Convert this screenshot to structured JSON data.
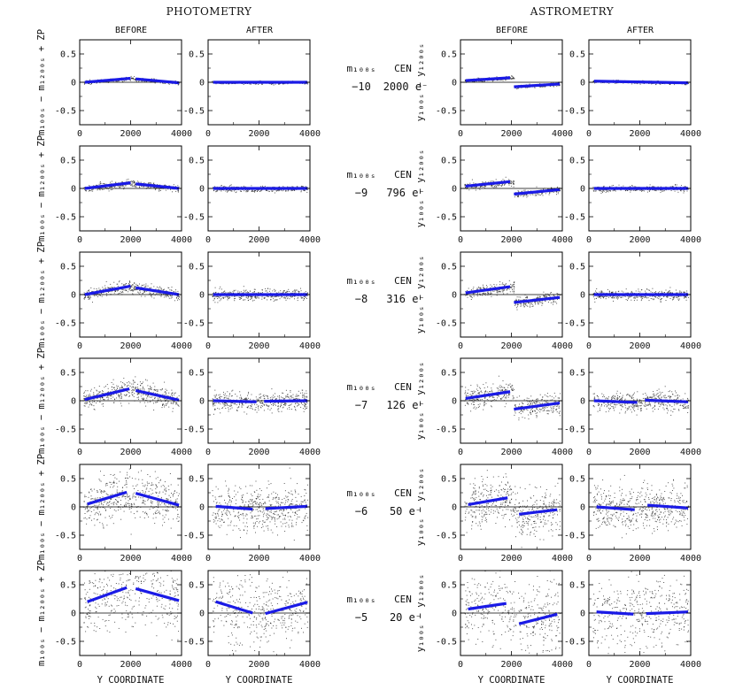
{
  "headers": {
    "left_title": "PHOTOMETRY",
    "right_title": "ASTROMETRY",
    "before": "BEFORE",
    "after": "AFTER"
  },
  "axes": {
    "x_label": "Y COORDINATE",
    "y_label_phot": "m₁₀₀ₛ − m₁₂₀₀ₛ + ZP",
    "y_label_astr": "y₁₀₀ₛ − y₁₂₀₀ₛ"
  },
  "middle_labels": [
    {
      "mag_label": "m₁₀₀ₛ",
      "cen_label": "CEN",
      "mag": "−10",
      "cen": "2000 e⁻"
    },
    {
      "mag_label": "m₁₀₀ₛ",
      "cen_label": "CEN",
      "mag": "−9",
      "cen": "796 e⁻"
    },
    {
      "mag_label": "m₁₀₀ₛ",
      "cen_label": "CEN",
      "mag": "−8",
      "cen": "316 e⁻"
    },
    {
      "mag_label": "m₁₀₀ₛ",
      "cen_label": "CEN",
      "mag": "−7",
      "cen": "126 e⁻"
    },
    {
      "mag_label": "m₁₀₀ₛ",
      "cen_label": "CEN",
      "mag": "−6",
      "cen": "50 e⁻"
    },
    {
      "mag_label": "m₁₀₀ₛ",
      "cen_label": "CEN",
      "mag": "−5",
      "cen": "20 e⁻"
    }
  ],
  "chart_data": {
    "type": "scatter",
    "x_range": [
      0,
      4000
    ],
    "y_range": [
      -0.75,
      0.75
    ],
    "x_ticks": [
      0,
      2000,
      4000
    ],
    "y_ticks": [
      0.5,
      0,
      -0.5
    ],
    "x_tick_labels": [
      "0",
      "2000",
      "4000"
    ],
    "y_tick_labels": [
      "0.5",
      "0",
      "-0.5"
    ],
    "panels": [
      {
        "row": 0,
        "col": "phot_before",
        "lines": [
          [
            200,
            0.0,
            2000,
            0.07
          ],
          [
            2200,
            0.06,
            3900,
            -0.01
          ]
        ],
        "scatter": 0.015,
        "density": 380
      },
      {
        "row": 0,
        "col": "phot_after",
        "lines": [
          [
            200,
            0.0,
            3900,
            0.0
          ]
        ],
        "scatter": 0.012,
        "density": 380
      },
      {
        "row": 0,
        "col": "astr_before",
        "lines": [
          [
            200,
            0.03,
            1950,
            0.08
          ],
          [
            2100,
            -0.08,
            3900,
            -0.03
          ]
        ],
        "scatter": 0.015,
        "density": 380
      },
      {
        "row": 0,
        "col": "astr_after",
        "lines": [
          [
            200,
            0.02,
            3900,
            -0.01
          ]
        ],
        "scatter": 0.012,
        "density": 380
      },
      {
        "row": 1,
        "col": "phot_before",
        "lines": [
          [
            200,
            0.0,
            2000,
            0.1
          ],
          [
            2200,
            0.08,
            3900,
            0.0
          ]
        ],
        "scatter": 0.03,
        "density": 380
      },
      {
        "row": 1,
        "col": "phot_after",
        "lines": [
          [
            200,
            0.0,
            3900,
            0.0
          ]
        ],
        "scatter": 0.025,
        "density": 380
      },
      {
        "row": 1,
        "col": "astr_before",
        "lines": [
          [
            200,
            0.04,
            1950,
            0.12
          ],
          [
            2100,
            -0.1,
            3900,
            -0.02
          ]
        ],
        "scatter": 0.03,
        "density": 380
      },
      {
        "row": 1,
        "col": "astr_after",
        "lines": [
          [
            200,
            0.0,
            3900,
            0.0
          ]
        ],
        "scatter": 0.025,
        "density": 380
      },
      {
        "row": 2,
        "col": "phot_before",
        "lines": [
          [
            200,
            0.0,
            2000,
            0.15
          ],
          [
            2200,
            0.12,
            3900,
            0.0
          ]
        ],
        "scatter": 0.05,
        "density": 420
      },
      {
        "row": 2,
        "col": "phot_after",
        "lines": [
          [
            200,
            0.0,
            3900,
            0.0
          ]
        ],
        "scatter": 0.045,
        "density": 420
      },
      {
        "row": 2,
        "col": "astr_before",
        "lines": [
          [
            200,
            0.03,
            1950,
            0.14
          ],
          [
            2100,
            -0.14,
            3900,
            -0.05
          ]
        ],
        "scatter": 0.05,
        "density": 420
      },
      {
        "row": 2,
        "col": "astr_after",
        "lines": [
          [
            200,
            0.0,
            3900,
            0.0
          ]
        ],
        "scatter": 0.045,
        "density": 420
      },
      {
        "row": 3,
        "col": "phot_before",
        "lines": [
          [
            200,
            0.02,
            1950,
            0.21
          ],
          [
            2200,
            0.18,
            3900,
            0.01
          ]
        ],
        "scatter": 0.09,
        "density": 480
      },
      {
        "row": 3,
        "col": "phot_after",
        "lines": [
          [
            200,
            0.0,
            1900,
            -0.02
          ],
          [
            2200,
            -0.01,
            3900,
            0.0
          ]
        ],
        "scatter": 0.085,
        "density": 480
      },
      {
        "row": 3,
        "col": "astr_before",
        "lines": [
          [
            200,
            0.04,
            1950,
            0.16
          ],
          [
            2100,
            -0.15,
            3900,
            -0.04
          ]
        ],
        "scatter": 0.09,
        "density": 480
      },
      {
        "row": 3,
        "col": "astr_after",
        "lines": [
          [
            200,
            0.0,
            1900,
            -0.03
          ],
          [
            2200,
            0.01,
            3900,
            -0.02
          ]
        ],
        "scatter": 0.085,
        "density": 480
      },
      {
        "row": 4,
        "col": "phot_before",
        "lines": [
          [
            300,
            0.05,
            1850,
            0.26
          ],
          [
            2200,
            0.24,
            3900,
            0.03
          ]
        ],
        "scatter": 0.2,
        "density": 520
      },
      {
        "row": 4,
        "col": "phot_after",
        "lines": [
          [
            300,
            0.01,
            1750,
            -0.04
          ],
          [
            2250,
            -0.03,
            3900,
            0.01
          ]
        ],
        "scatter": 0.2,
        "density": 520
      },
      {
        "row": 4,
        "col": "astr_before",
        "lines": [
          [
            300,
            0.04,
            1850,
            0.16
          ],
          [
            2300,
            -0.13,
            3800,
            -0.05
          ]
        ],
        "scatter": 0.2,
        "density": 520
      },
      {
        "row": 4,
        "col": "astr_after",
        "lines": [
          [
            300,
            0.0,
            1800,
            -0.05
          ],
          [
            2300,
            0.03,
            3900,
            -0.02
          ]
        ],
        "scatter": 0.2,
        "density": 520
      },
      {
        "row": 5,
        "col": "phot_before",
        "lines": [
          [
            300,
            0.2,
            1850,
            0.45
          ],
          [
            2200,
            0.43,
            3900,
            0.22
          ]
        ],
        "scatter": 0.32,
        "density": 420
      },
      {
        "row": 5,
        "col": "phot_after",
        "lines": [
          [
            300,
            0.2,
            1750,
            0.0
          ],
          [
            2250,
            -0.01,
            3900,
            0.19
          ]
        ],
        "scatter": 0.32,
        "density": 420
      },
      {
        "row": 5,
        "col": "astr_before",
        "lines": [
          [
            300,
            0.07,
            1800,
            0.17
          ],
          [
            2300,
            -0.19,
            3800,
            -0.02
          ]
        ],
        "scatter": 0.32,
        "density": 420
      },
      {
        "row": 5,
        "col": "astr_after",
        "lines": [
          [
            300,
            0.02,
            1750,
            -0.02
          ],
          [
            2250,
            -0.01,
            3900,
            0.02
          ]
        ],
        "scatter": 0.32,
        "density": 420
      }
    ]
  }
}
